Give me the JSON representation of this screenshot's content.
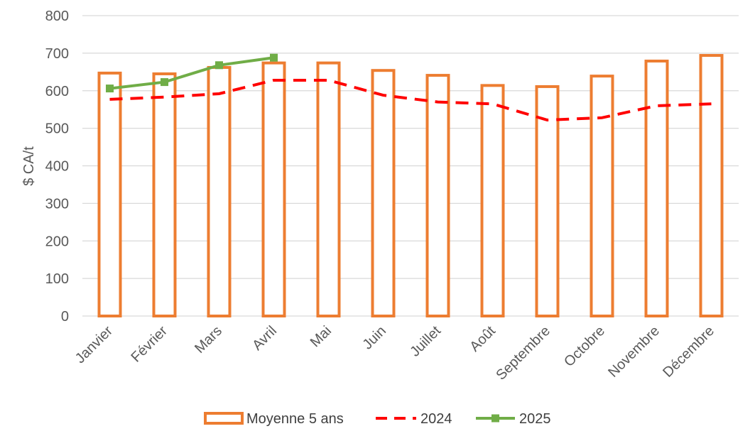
{
  "chart_data": {
    "type": "bar",
    "ylabel": "$ CA/t",
    "xlabel": "",
    "ylim": [
      0,
      800
    ],
    "yticks": [
      0,
      100,
      200,
      300,
      400,
      500,
      600,
      700,
      800
    ],
    "grid": true,
    "legend_position": "bottom",
    "categories": [
      "Janvier",
      "Février",
      "Mars",
      "Avril",
      "Mai",
      "Juin",
      "Juillet",
      "Août",
      "Septembre",
      "Octobre",
      "Novembre",
      "Décembre"
    ],
    "series": [
      {
        "name": "Moyenne 5 ans",
        "type": "bar",
        "style": "hollow",
        "color": "#ED7D31",
        "values": [
          647,
          645,
          662,
          674,
          674,
          654,
          641,
          614,
          611,
          639,
          679,
          694
        ]
      },
      {
        "name": "2024",
        "type": "line",
        "style": "dashed",
        "color": "#FF0000",
        "values": [
          577,
          583,
          592,
          628,
          628,
          588,
          570,
          565,
          522,
          528,
          560,
          565
        ]
      },
      {
        "name": "2025",
        "type": "line",
        "style": "solid-square-markers",
        "color": "#70AD47",
        "values": [
          606,
          623,
          668,
          688,
          null,
          null,
          null,
          null,
          null,
          null,
          null,
          null
        ]
      }
    ]
  }
}
